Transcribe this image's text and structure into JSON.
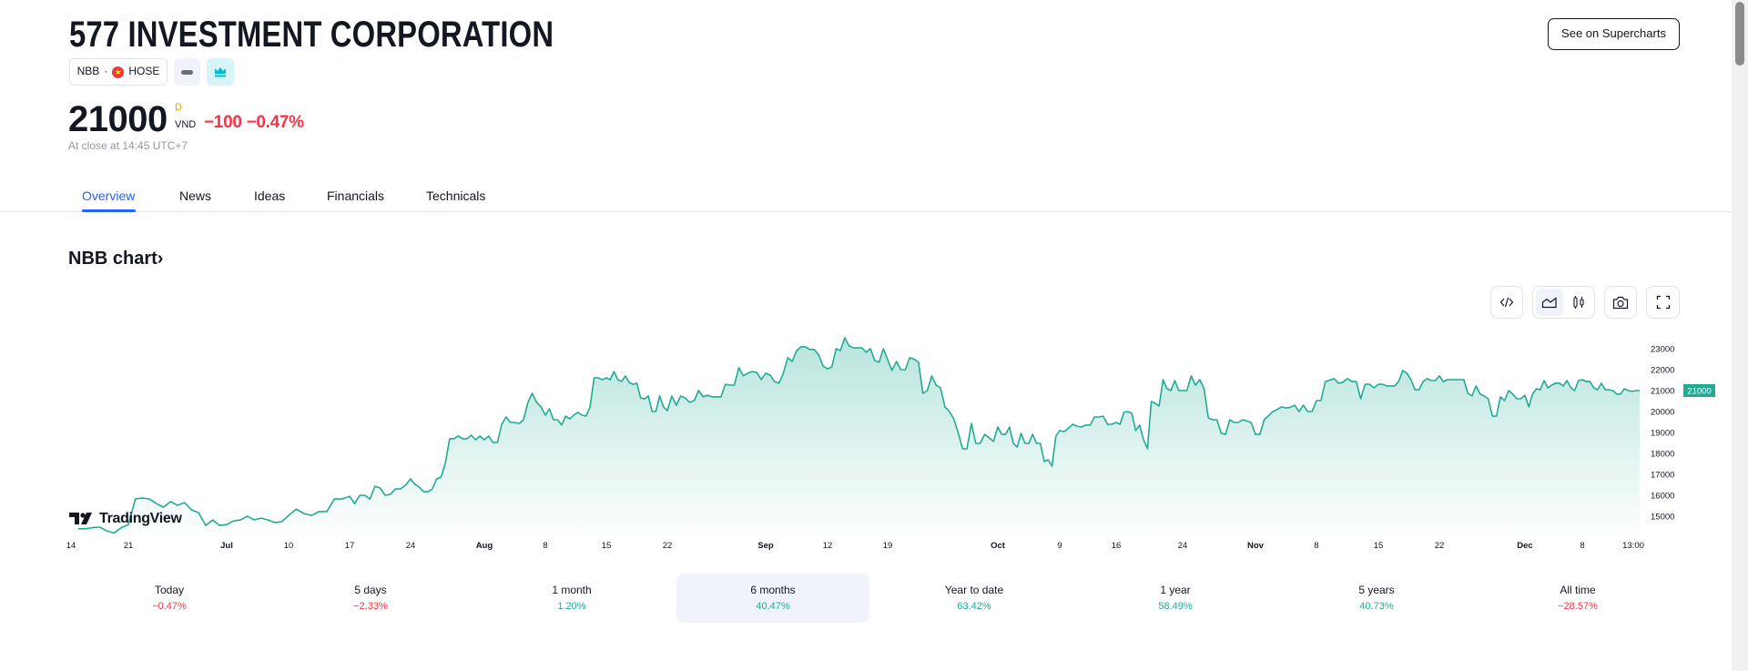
{
  "header": {
    "title": "577 INVESTMENT CORPORATION",
    "supercharts_label": "See on Supercharts",
    "symbol": "NBB",
    "separator": "·",
    "exchange": "HOSE",
    "price": "21000",
    "price_flag": "D",
    "currency": "VND",
    "change": "−100",
    "change_pct": "−0.47%",
    "close_time": "At close at 14:45 UTC+7"
  },
  "tabs": [
    {
      "label": "Overview",
      "active": true
    },
    {
      "label": "News"
    },
    {
      "label": "Ideas"
    },
    {
      "label": "Financials"
    },
    {
      "label": "Technicals"
    }
  ],
  "chart_heading": "NBB chart",
  "chart_heading_chevron": "›",
  "toolbar": {
    "icons": [
      "embed-code-icon",
      "area-chart-icon",
      "candles-icon",
      "camera-icon",
      "fullscreen-icon"
    ],
    "selected_chart_type": "area"
  },
  "logo_text": "TradingView",
  "colors": {
    "line": "#22ab94",
    "negative": "#f23645",
    "positive": "#22ab94",
    "accent": "#2962ff",
    "price_badge": "#22ab94"
  },
  "chart_data": {
    "type": "area",
    "ylim": [
      14300,
      23800
    ],
    "yticks": [
      "23000",
      "22000",
      "21000",
      "20000",
      "19000",
      "18000",
      "17000",
      "16000",
      "15000"
    ],
    "last_price_label": "21000",
    "x_ticks": [
      "14",
      "21",
      "Jul",
      "10",
      "17",
      "24",
      "Aug",
      "8",
      "15",
      "22",
      "Sep",
      "12",
      "19",
      "Oct",
      "9",
      "16",
      "24",
      "Nov",
      "8",
      "15",
      "22",
      "Dec",
      "8",
      "13:00"
    ],
    "segments": [
      [
        14400,
        14400,
        14450,
        14480,
        14300,
        14200,
        14450
      ],
      [
        14600,
        15820,
        15870,
        15820,
        15600,
        15430,
        15700,
        15520,
        15650,
        15300,
        15170,
        14560,
        14820,
        14560
      ],
      [
        14600,
        14780,
        14820,
        15000,
        14820,
        14910,
        14820,
        14700,
        14740
      ],
      [
        15040,
        15340,
        15130,
        15040,
        15220,
        15220,
        15820,
        15820
      ],
      [
        15950,
        15600,
        16000,
        16000,
        15820,
        16430,
        16350,
        16000,
        16040,
        16300,
        16300,
        16480
      ],
      [
        16780,
        16520,
        16390,
        16170,
        16170,
        16300,
        16780,
        16870,
        17520,
        18700,
        18700,
        18830,
        18700,
        18700,
        18870,
        18650,
        18830
      ],
      [
        18650,
        18830,
        18520,
        18520,
        19390,
        19740,
        19480,
        19480,
        19430,
        19610,
        20440,
        20870,
        20440,
        20220
      ],
      [
        19830,
        20130,
        19610,
        19610,
        19350,
        19780,
        19650,
        19830,
        19960,
        19830,
        19780,
        20220,
        21610,
        21610,
        21520
      ],
      [
        21610,
        21520,
        21910,
        21520,
        21430,
        21700,
        21390,
        21300,
        21350,
        20650,
        20600,
        20740,
        20000,
        20000,
        20740,
        20220
      ],
      [
        20040,
        20740,
        20300,
        20740,
        20650,
        20440,
        20520,
        21000,
        20700,
        20780,
        20700,
        20700,
        20700,
        21300,
        21260,
        21260,
        22090,
        21700,
        21830,
        21910,
        21870,
        21520
      ],
      [
        21830,
        21740,
        21430,
        21350,
        21830,
        22570,
        22390,
        22910,
        23090,
        23090,
        22960,
        22960,
        22700,
        22170
      ],
      [
        22040,
        22130,
        23000,
        22910,
        23520,
        23130,
        23040,
        23040,
        23040,
        22830,
        23000,
        22430,
        22350,
        23000
      ],
      [
        22480,
        21960,
        22390,
        22000,
        22000,
        22570,
        22500,
        22350,
        20870,
        21000,
        21700,
        21260,
        21130,
        20220,
        20000,
        19650,
        19000,
        18220,
        18220,
        19430,
        18480,
        18480,
        18910,
        18750,
        18570
      ],
      [
        19260,
        18910,
        18910,
        19260,
        18480,
        18300,
        18960,
        18480,
        18480,
        18910,
        18480,
        18480,
        17610,
        17700,
        17390,
        18830
      ],
      [
        19090,
        19040,
        19200,
        19390,
        19300,
        19260,
        19350,
        19350,
        19740,
        19740,
        19780,
        19390,
        19390
      ],
      [
        19480,
        19390,
        19960,
        20000,
        19910,
        19090,
        19350,
        18650,
        18220,
        20480,
        20390,
        20260,
        21520,
        21090,
        21000,
        21480,
        21000
      ],
      [
        21000,
        21000,
        21700,
        21260,
        21520,
        21090,
        19700,
        19610,
        19610,
        18960,
        18910,
        19610,
        19480,
        19480,
        19610,
        19550,
        19480
      ],
      [
        18910,
        18910,
        19610,
        19800,
        20000,
        20100,
        20220,
        20170,
        20200,
        20300,
        20000,
        20300,
        20000,
        20000
      ],
      [
        20520,
        20520,
        21430,
        21500,
        21570,
        21350,
        21400,
        21570,
        21430,
        21430,
        20610,
        21300,
        21300,
        21130
      ],
      [
        21300,
        21300,
        21220,
        21220,
        21220,
        21430,
        21960,
        21830,
        21520,
        21040,
        21040,
        21430,
        21570,
        21480,
        21480
      ],
      [
        21700,
        21430,
        21520,
        21520,
        21520,
        21520,
        21520,
        20870,
        20740,
        21220,
        20830,
        20740,
        20610,
        19780,
        19780,
        20700,
        20520,
        21000,
        20830,
        20610,
        20610
      ],
      [
        20780,
        20220,
        20830,
        21090,
        21040,
        21480,
        21130,
        21260,
        21350,
        21350,
        21220,
        21480,
        21130,
        21000,
        21480
      ],
      [
        21520,
        21430,
        21430,
        21130,
        21040,
        21350,
        21040,
        21040,
        21000,
        20830,
        20830,
        21090,
        21000,
        20960,
        21000
      ]
    ]
  },
  "periods": [
    {
      "label": "Today",
      "value": "−0.47%",
      "sign": "neg"
    },
    {
      "label": "5 days",
      "value": "−2.33%",
      "sign": "neg"
    },
    {
      "label": "1 month",
      "value": "1.20%",
      "sign": "pos"
    },
    {
      "label": "6 months",
      "value": "40.47%",
      "sign": "pos",
      "active": true
    },
    {
      "label": "Year to date",
      "value": "63.42%",
      "sign": "pos"
    },
    {
      "label": "1 year",
      "value": "58.49%",
      "sign": "pos"
    },
    {
      "label": "5 years",
      "value": "40.73%",
      "sign": "pos"
    },
    {
      "label": "All time",
      "value": "−28.57%",
      "sign": "neg"
    }
  ]
}
